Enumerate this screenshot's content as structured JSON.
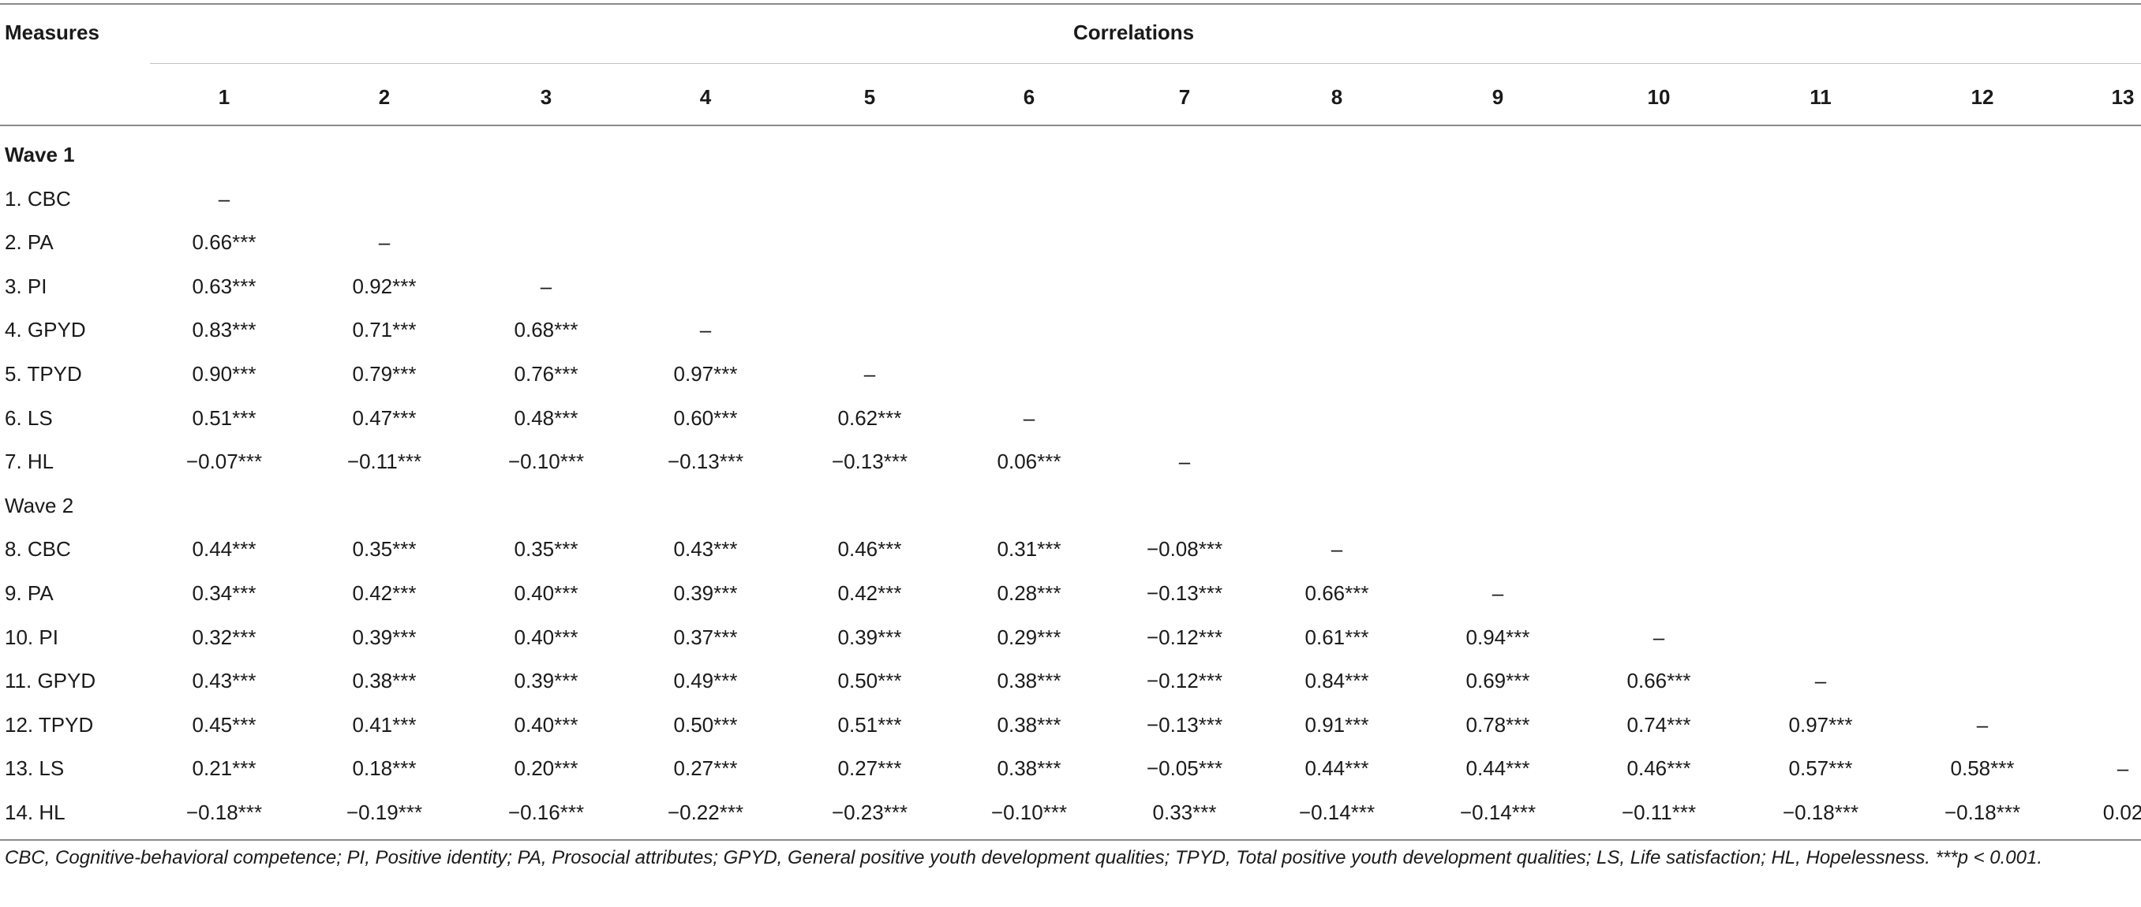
{
  "table": {
    "measures_header": "Measures",
    "correlations_header": "Correlations",
    "columns": [
      "1",
      "2",
      "3",
      "4",
      "5",
      "6",
      "7",
      "8",
      "9",
      "10",
      "11",
      "12",
      "13"
    ],
    "rows": [
      {
        "label": "Wave 1",
        "bold": true,
        "cells": []
      },
      {
        "label": "1. CBC",
        "cells": [
          "–"
        ]
      },
      {
        "label": "2. PA",
        "cells": [
          "0.66***",
          "–"
        ]
      },
      {
        "label": "3. PI",
        "cells": [
          "0.63***",
          "0.92***",
          "–"
        ]
      },
      {
        "label": "4. GPYD",
        "cells": [
          "0.83***",
          "0.71***",
          "0.68***",
          "–"
        ]
      },
      {
        "label": "5. TPYD",
        "cells": [
          "0.90***",
          "0.79***",
          "0.76***",
          "0.97***",
          "–"
        ]
      },
      {
        "label": "6. LS",
        "cells": [
          "0.51***",
          "0.47***",
          "0.48***",
          "0.60***",
          "0.62***",
          "–"
        ]
      },
      {
        "label": "7. HL",
        "cells": [
          "−0.07***",
          "−0.11***",
          "−0.10***",
          "−0.13***",
          "−0.13***",
          "0.06***",
          "–"
        ]
      },
      {
        "label": "Wave 2",
        "cells": []
      },
      {
        "label": "8. CBC",
        "cells": [
          "0.44***",
          "0.35***",
          "0.35***",
          "0.43***",
          "0.46***",
          "0.31***",
          "−0.08***",
          "–"
        ]
      },
      {
        "label": "9. PA",
        "cells": [
          "0.34***",
          "0.42***",
          "0.40***",
          "0.39***",
          "0.42***",
          "0.28***",
          "−0.13***",
          "0.66***",
          "–"
        ]
      },
      {
        "label": "10. PI",
        "cells": [
          "0.32***",
          "0.39***",
          "0.40***",
          "0.37***",
          "0.39***",
          "0.29***",
          "−0.12***",
          "0.61***",
          "0.94***",
          "–"
        ]
      },
      {
        "label": "11. GPYD",
        "cells": [
          "0.43***",
          "0.38***",
          "0.39***",
          "0.49***",
          "0.50***",
          "0.38***",
          "−0.12***",
          "0.84***",
          "0.69***",
          "0.66***",
          "–"
        ]
      },
      {
        "label": "12. TPYD",
        "cells": [
          "0.45***",
          "0.41***",
          "0.40***",
          "0.50***",
          "0.51***",
          "0.38***",
          "−0.13***",
          "0.91***",
          "0.78***",
          "0.74***",
          "0.97***",
          "–"
        ]
      },
      {
        "label": "13. LS",
        "cells": [
          "0.21***",
          "0.18***",
          "0.20***",
          "0.27***",
          "0.27***",
          "0.38***",
          "−0.05***",
          "0.44***",
          "0.44***",
          "0.46***",
          "0.57***",
          "0.58***",
          "–"
        ]
      },
      {
        "label": "14. HL",
        "cells": [
          "−0.18***",
          "−0.19***",
          "−0.16***",
          "−0.22***",
          "−0.23***",
          "−0.10***",
          "0.33***",
          "−0.14***",
          "−0.14***",
          "−0.11***",
          "−0.18***",
          "−0.18***",
          "0.02"
        ]
      }
    ]
  },
  "footnote": "CBC, Cognitive-behavioral competence; PI, Positive identity; PA, Prosocial attributes; GPYD, General positive youth development qualities; TPYD, Total positive youth development qualities; LS, Life satisfaction; HL, Hopelessness. ***p < 0.001."
}
